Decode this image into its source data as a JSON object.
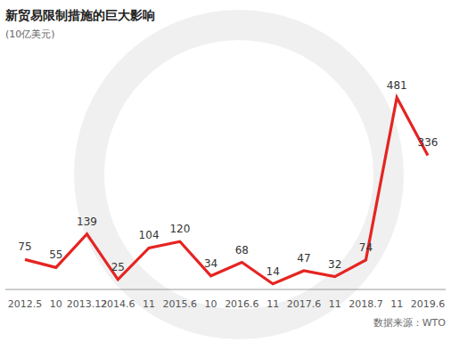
{
  "chart_data": {
    "type": "line",
    "title": "新贸易限制措施的巨大影响",
    "subtitle": "(10亿美元)",
    "source": "数据来源：WTO",
    "categories": [
      "2012.5",
      "10",
      "2013.12",
      "2014.6",
      "11",
      "2015.6",
      "10",
      "2016.6",
      "11",
      "2017.6",
      "11",
      "2018.7",
      "11",
      "2019.6"
    ],
    "values": [
      75,
      55,
      139,
      25,
      104,
      120,
      34,
      68,
      14,
      47,
      32,
      74,
      481,
      336
    ],
    "color": "#e52421",
    "ylim": [
      0,
      500
    ],
    "data_labels": true,
    "tick_labels": "x"
  }
}
